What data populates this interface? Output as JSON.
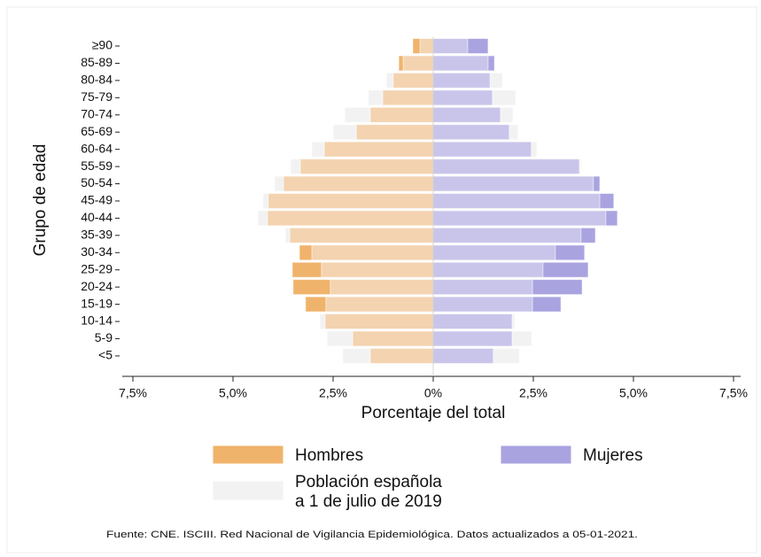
{
  "chart_data": {
    "type": "pyramid",
    "y_label": "Grupo de edad",
    "x_label": "Porcentaje del total",
    "categories": [
      "≥90",
      "85-89",
      "80-84",
      "75-79",
      "70-74",
      "65-69",
      "60-64",
      "55-59",
      "50-54",
      "45-49",
      "40-44",
      "35-39",
      "30-34",
      "25-29",
      "20-24",
      "15-19",
      "10-14",
      "5-9",
      "<5"
    ],
    "series": [
      {
        "name": "Hombres",
        "side": "left",
        "color": "#f0b36b",
        "overlap_color": "#f3d3b0",
        "values": [
          0.51,
          0.86,
          1.0,
          1.26,
          1.57,
          1.92,
          2.72,
          3.32,
          3.74,
          4.12,
          4.14,
          3.58,
          3.34,
          3.52,
          3.5,
          3.19,
          2.7,
          2.01,
          1.57
        ]
      },
      {
        "name": "Mujeres",
        "side": "right",
        "color": "#a9a3e0",
        "overlap_color": "#c9c5ea",
        "values": [
          1.37,
          1.53,
          1.42,
          1.48,
          1.68,
          1.9,
          2.45,
          3.65,
          4.16,
          4.51,
          4.6,
          4.05,
          3.78,
          3.87,
          3.72,
          3.19,
          1.97,
          1.97,
          1.5
        ]
      }
    ],
    "population": {
      "name": [
        "Población española",
        "a 1 de julio de 2019"
      ],
      "color": "#f2f2f2",
      "left": [
        0.33,
        0.75,
        1.17,
        1.62,
        2.21,
        2.5,
        3.03,
        3.56,
        3.96,
        4.25,
        4.38,
        3.69,
        3.03,
        2.79,
        2.57,
        2.68,
        2.83,
        2.65,
        2.26
      ],
      "right": [
        0.86,
        1.37,
        1.73,
        2.06,
        1.99,
        2.12,
        2.59,
        3.69,
        4.0,
        4.16,
        4.31,
        3.69,
        3.05,
        2.74,
        2.48,
        2.48,
        2.04,
        2.46,
        2.15
      ]
    },
    "xlim": [
      -7.5,
      7.5
    ],
    "xticks": [
      {
        "value": -7.5,
        "label": "7,5%"
      },
      {
        "value": -5,
        "label": "5,0%"
      },
      {
        "value": -2.5,
        "label": "2,5%"
      },
      {
        "value": 0,
        "label": "0%"
      },
      {
        "value": 2.5,
        "label": "2,5%"
      },
      {
        "value": 5,
        "label": "5,0%"
      },
      {
        "value": 7.5,
        "label": "7,5%"
      }
    ],
    "source": "Fuente: CNE. ISCIII. Red Nacional de Vigilancia Epidemiológica. Datos actualizados a 05-01-2021."
  }
}
